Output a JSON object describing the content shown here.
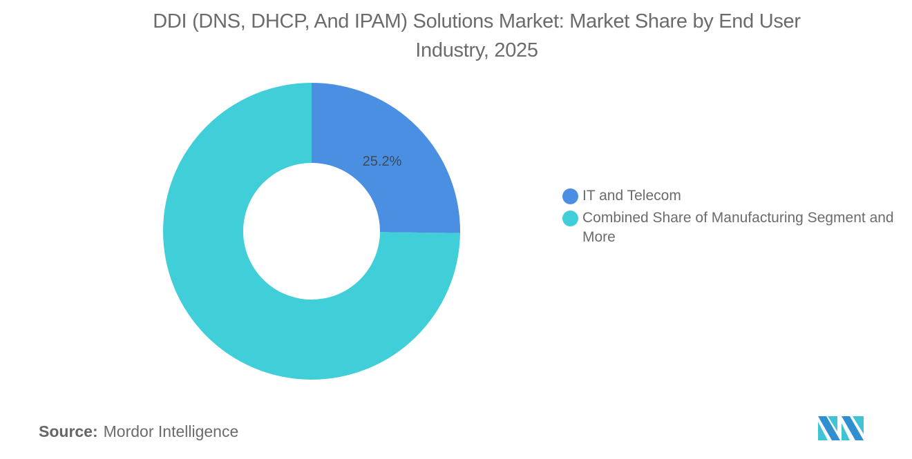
{
  "title": "DDI (DNS, DHCP, And IPAM) Solutions Market: Market Share by End User Industry, 2025",
  "title_line1": "DDI (DNS, DHCP, And IPAM) Solutions Market: Market Share by End User",
  "title_line2": "Industry, 2025",
  "legend": {
    "items": [
      {
        "label": "IT and Telecom",
        "color": "#4a8fe2"
      },
      {
        "label": "Combined Share of Manufacturing Segment and More",
        "color": "#40ced8"
      }
    ]
  },
  "slice_labels": {
    "it_telecom": "25.2%"
  },
  "source": {
    "label": "Source:",
    "value": "Mordor Intelligence"
  },
  "logo": {
    "name": "mordor-intelligence-logo",
    "colors": [
      "#2f8fcf",
      "#40c4d4"
    ]
  },
  "chart_data": {
    "type": "pie",
    "subtype": "donut",
    "title": "DDI (DNS, DHCP, And IPAM) Solutions Market: Market Share by End User Industry, 2025",
    "categories": [
      "IT and Telecom",
      "Combined Share of Manufacturing Segment and More"
    ],
    "values": [
      25.2,
      74.8
    ],
    "unit": "%",
    "colors": [
      "#4a8fe2",
      "#40ced8"
    ],
    "data_labels": [
      "25.2%",
      ""
    ],
    "legend_position": "right",
    "start_angle": "12 o'clock, clockwise"
  }
}
